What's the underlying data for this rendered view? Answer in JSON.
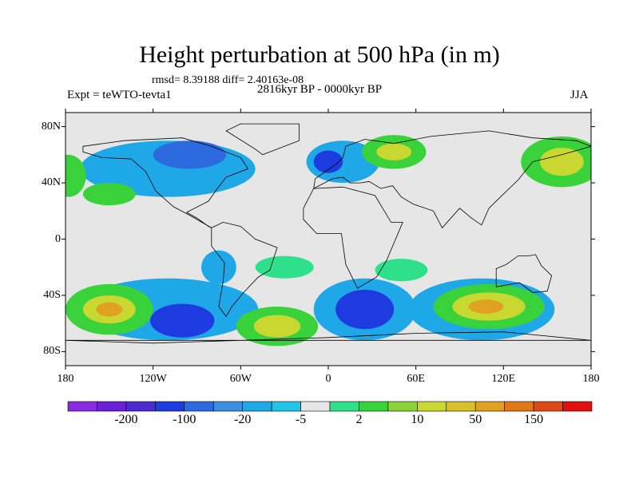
{
  "title": "Height perturbation at 500 hPa (in m)",
  "stats": "rmsd= 8.39188 diff= 2.40163e-08",
  "experiment": "Expt = teWTO-tevta1",
  "period": "2816kyr BP - 0000kyr BP",
  "season": "JJA",
  "lat_ticks": [
    {
      "label": "80N",
      "lat": 80
    },
    {
      "label": "40N",
      "lat": 40
    },
    {
      "label": "0",
      "lat": 0
    },
    {
      "label": "40S",
      "lat": -40
    },
    {
      "label": "80S",
      "lat": -80
    }
  ],
  "lon_ticks": [
    {
      "label": "180",
      "lon": -180
    },
    {
      "label": "120W",
      "lon": -120
    },
    {
      "label": "60W",
      "lon": -60
    },
    {
      "label": "0",
      "lon": 0
    },
    {
      "label": "60E",
      "lon": 60
    },
    {
      "label": "120E",
      "lon": 120
    },
    {
      "label": "180",
      "lon": 180
    }
  ],
  "colorbar": {
    "colors": [
      "#8a2be2",
      "#6a1fd8",
      "#4b2ad0",
      "#1e3be0",
      "#2d6ae0",
      "#3a8fe0",
      "#1ea8e8",
      "#22c4e8",
      "#e6e6e6",
      "#2ee08a",
      "#3ad23a",
      "#8ad23a",
      "#c8d830",
      "#d8c028",
      "#e0a020",
      "#e07818",
      "#e04818",
      "#e01010"
    ],
    "labels": [
      {
        "text": "-200",
        "boundary": 2
      },
      {
        "text": "-100",
        "boundary": 4
      },
      {
        "text": "-20",
        "boundary": 6
      },
      {
        "text": "-5",
        "boundary": 8
      },
      {
        "text": "2",
        "boundary": 10
      },
      {
        "text": "10",
        "boundary": 12
      },
      {
        "text": "50",
        "boundary": 14
      },
      {
        "text": "150",
        "boundary": 16
      }
    ]
  },
  "map": {
    "background": "#e6e6e6",
    "regions": [
      {
        "color": "#1ea8e8",
        "lon": -110,
        "lat": -50,
        "rx": 62,
        "ry": 22
      },
      {
        "color": "#3ad23a",
        "lon": -150,
        "lat": -50,
        "rx": 30,
        "ry": 18
      },
      {
        "color": "#c8d830",
        "lon": -150,
        "lat": -50,
        "rx": 18,
        "ry": 10
      },
      {
        "color": "#e0a020",
        "lon": -150,
        "lat": -50,
        "rx": 9,
        "ry": 5
      },
      {
        "color": "#1e3be0",
        "lon": -100,
        "lat": -58,
        "rx": 22,
        "ry": 12
      },
      {
        "color": "#3ad23a",
        "lon": -35,
        "lat": -62,
        "rx": 28,
        "ry": 14
      },
      {
        "color": "#c8d830",
        "lon": -35,
        "lat": -62,
        "rx": 16,
        "ry": 8
      },
      {
        "color": "#1ea8e8",
        "lon": 25,
        "lat": -50,
        "rx": 35,
        "ry": 22
      },
      {
        "color": "#1e3be0",
        "lon": 25,
        "lat": -50,
        "rx": 20,
        "ry": 14
      },
      {
        "color": "#1ea8e8",
        "lon": 105,
        "lat": -50,
        "rx": 50,
        "ry": 22
      },
      {
        "color": "#3ad23a",
        "lon": 110,
        "lat": -48,
        "rx": 38,
        "ry": 16
      },
      {
        "color": "#c8d830",
        "lon": 110,
        "lat": -48,
        "rx": 25,
        "ry": 10
      },
      {
        "color": "#e0a020",
        "lon": 108,
        "lat": -48,
        "rx": 12,
        "ry": 5
      },
      {
        "color": "#1ea8e8",
        "lon": -110,
        "lat": 50,
        "rx": 60,
        "ry": 20
      },
      {
        "color": "#2d6ae0",
        "lon": -95,
        "lat": 60,
        "rx": 25,
        "ry": 10
      },
      {
        "color": "#1ea8e8",
        "lon": 10,
        "lat": 55,
        "rx": 25,
        "ry": 15
      },
      {
        "color": "#1e3be0",
        "lon": 0,
        "lat": 55,
        "rx": 10,
        "ry": 8
      },
      {
        "color": "#3ad23a",
        "lon": 45,
        "lat": 62,
        "rx": 22,
        "ry": 12
      },
      {
        "color": "#c8d830",
        "lon": 45,
        "lat": 62,
        "rx": 12,
        "ry": 6
      },
      {
        "color": "#3ad23a",
        "lon": 160,
        "lat": 55,
        "rx": 28,
        "ry": 18
      },
      {
        "color": "#c8d830",
        "lon": 160,
        "lat": 55,
        "rx": 15,
        "ry": 10
      },
      {
        "color": "#3ad23a",
        "lon": -178,
        "lat": 45,
        "rx": 12,
        "ry": 15
      },
      {
        "color": "#3ad23a",
        "lon": -150,
        "lat": 32,
        "rx": 18,
        "ry": 8
      },
      {
        "color": "#2ee08a",
        "lon": -30,
        "lat": -20,
        "rx": 20,
        "ry": 8
      },
      {
        "color": "#2ee08a",
        "lon": 50,
        "lat": -22,
        "rx": 18,
        "ry": 8
      },
      {
        "color": "#1ea8e8",
        "lon": -75,
        "lat": -20,
        "rx": 12,
        "ry": 12
      }
    ],
    "land": [
      [
        [
          -168,
          66
        ],
        [
          -140,
          70
        ],
        [
          -100,
          72
        ],
        [
          -80,
          66
        ],
        [
          -60,
          58
        ],
        [
          -55,
          50
        ],
        [
          -70,
          44
        ],
        [
          -76,
          36
        ],
        [
          -82,
          27
        ],
        [
          -97,
          19
        ],
        [
          -90,
          15
        ],
        [
          -82,
          9
        ],
        [
          -80,
          8
        ],
        [
          -95,
          17
        ],
        [
          -106,
          23
        ],
        [
          -118,
          34
        ],
        [
          -125,
          48
        ],
        [
          -135,
          57
        ],
        [
          -155,
          58
        ],
        [
          -168,
          62
        ]
      ],
      [
        [
          -80,
          8
        ],
        [
          -72,
          12
        ],
        [
          -60,
          9
        ],
        [
          -50,
          0
        ],
        [
          -35,
          -6
        ],
        [
          -40,
          -22
        ],
        [
          -48,
          -27
        ],
        [
          -58,
          -38
        ],
        [
          -66,
          -48
        ],
        [
          -70,
          -55
        ],
        [
          -75,
          -48
        ],
        [
          -72,
          -30
        ],
        [
          -71,
          -17
        ],
        [
          -80,
          -5
        ]
      ],
      [
        [
          -45,
          60
        ],
        [
          -20,
          70
        ],
        [
          -20,
          82
        ],
        [
          -60,
          82
        ],
        [
          -70,
          77
        ],
        [
          -50,
          64
        ]
      ],
      [
        [
          -10,
          36
        ],
        [
          10,
          37
        ],
        [
          32,
          31
        ],
        [
          43,
          12
        ],
        [
          51,
          12
        ],
        [
          40,
          -15
        ],
        [
          33,
          -27
        ],
        [
          20,
          -35
        ],
        [
          12,
          -18
        ],
        [
          9,
          4
        ],
        [
          -8,
          4
        ],
        [
          -17,
          14
        ],
        [
          -17,
          22
        ]
      ],
      [
        [
          -10,
          36
        ],
        [
          -9,
          43
        ],
        [
          -2,
          48
        ],
        [
          5,
          53
        ],
        [
          10,
          58
        ],
        [
          12,
          66
        ],
        [
          25,
          71
        ],
        [
          45,
          68
        ],
        [
          70,
          73
        ],
        [
          110,
          77
        ],
        [
          140,
          72
        ],
        [
          170,
          70
        ],
        [
          180,
          66
        ],
        [
          160,
          60
        ],
        [
          140,
          55
        ],
        [
          130,
          42
        ],
        [
          120,
          32
        ],
        [
          110,
          22
        ],
        [
          105,
          10
        ],
        [
          98,
          15
        ],
        [
          90,
          22
        ],
        [
          78,
          8
        ],
        [
          72,
          20
        ],
        [
          58,
          25
        ],
        [
          50,
          30
        ],
        [
          44,
          38
        ],
        [
          36,
          36
        ],
        [
          28,
          41
        ],
        [
          22,
          40
        ],
        [
          15,
          40
        ],
        [
          10,
          44
        ],
        [
          3,
          43
        ]
      ],
      [
        [
          115,
          -21
        ],
        [
          122,
          -18
        ],
        [
          130,
          -12
        ],
        [
          137,
          -12
        ],
        [
          142,
          -11
        ],
        [
          146,
          -19
        ],
        [
          153,
          -26
        ],
        [
          150,
          -37
        ],
        [
          140,
          -38
        ],
        [
          131,
          -31
        ],
        [
          115,
          -34
        ]
      ],
      [
        [
          -180,
          -72
        ],
        [
          -120,
          -74
        ],
        [
          -60,
          -72
        ],
        [
          0,
          -70
        ],
        [
          60,
          -67
        ],
        [
          120,
          -66
        ],
        [
          180,
          -72
        ]
      ]
    ]
  }
}
